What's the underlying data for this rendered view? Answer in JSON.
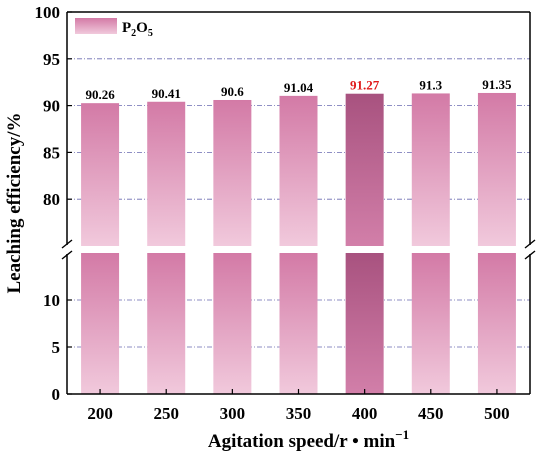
{
  "chart_data": {
    "type": "bar",
    "title": "",
    "xlabel": "Agitation speed/r • min",
    "xlabel_sup": "−1",
    "ylabel": "Leaching efficiency/%",
    "categories": [
      "200",
      "250",
      "300",
      "350",
      "400",
      "450",
      "500"
    ],
    "series": [
      {
        "name_parts": [
          "P",
          "2",
          "O",
          "5"
        ],
        "values": [
          90.26,
          90.41,
          90.6,
          91.04,
          91.27,
          91.3,
          91.35
        ],
        "value_labels": [
          "90.26",
          "90.41",
          "90.6",
          "91.04",
          "91.27",
          "91.3",
          "91.35"
        ]
      }
    ],
    "highlight_index": 4,
    "y_axis_break": true,
    "lower_segment": {
      "ylim": [
        0,
        15
      ],
      "ticks": [
        "0",
        "5",
        "10"
      ]
    },
    "upper_segment": {
      "ylim": [
        75,
        100
      ],
      "ticks": [
        "80",
        "85",
        "90",
        "95",
        "100"
      ]
    },
    "grid": "dash-dot horizontal",
    "legend_position": "top-left",
    "colors": {
      "bar_top": "#d37aa6",
      "bar_bottom": "#f1c9dc",
      "highlight_top": "#a8527f",
      "highlight_bottom": "#d27fa9",
      "grid": "#6a6ab0",
      "highlight_label": "#e01818",
      "axis": "#000000"
    }
  }
}
